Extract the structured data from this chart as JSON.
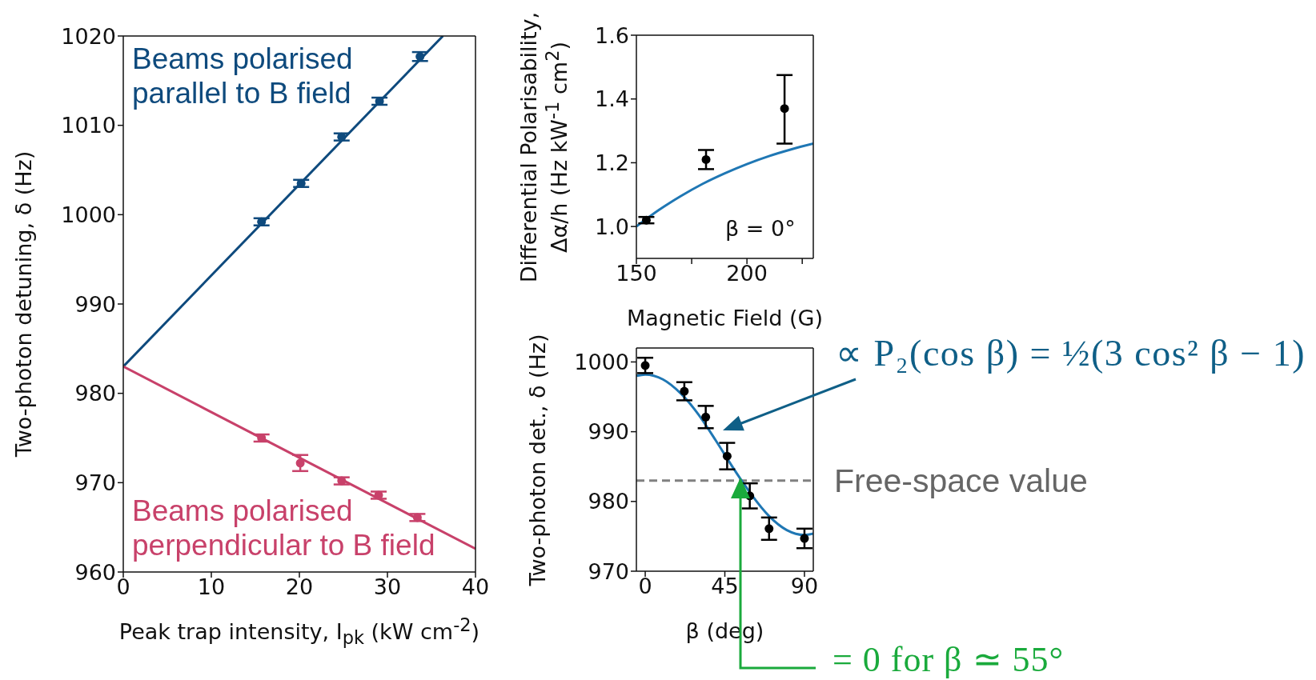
{
  "chart_data": [
    {
      "type": "scatter",
      "xlabel": "Peak trap intensity, I$_{pk}$ (kW cm$^{-2}$)",
      "ylabel": "Two-photon detuning, δ (Hz)",
      "xlim": [
        0,
        40
      ],
      "ylim": [
        960,
        1020
      ],
      "xticks": [
        0,
        10,
        20,
        30,
        40
      ],
      "yticks": [
        960,
        970,
        980,
        990,
        1000,
        1010,
        1020
      ],
      "series": [
        {
          "type": "line",
          "color": "#0e4a7d",
          "x": [
            0,
            36.3
          ],
          "values": [
            983,
            1020
          ]
        },
        {
          "type": "scatter",
          "name": "Beams polarised parallel to B field",
          "color": "#0e4a7d",
          "marker": "circle",
          "x": [
            15.7,
            20.2,
            24.8,
            29.1,
            33.7
          ],
          "values": [
            999.2,
            1003.5,
            1008.7,
            1012.7,
            1017.7
          ],
          "errors": [
            0.4,
            0.4,
            0.4,
            0.4,
            0.5
          ]
        },
        {
          "type": "line",
          "color": "#c8416a",
          "x": [
            0,
            40
          ],
          "values": [
            983,
            962.6
          ]
        },
        {
          "type": "scatter",
          "name": "Beams polarised perpendicular to B field",
          "color": "#c8416a",
          "marker": "circle",
          "x": [
            15.7,
            20.1,
            24.8,
            29.0,
            33.4
          ],
          "values": [
            975.0,
            972.2,
            970.2,
            968.6,
            966.1
          ],
          "errors": [
            0.4,
            0.9,
            0.4,
            0.4,
            0.4
          ]
        }
      ]
    },
    {
      "type": "scatter",
      "xlabel": "Magnetic Field (G)",
      "ylabel": "Differential Polarisability,\nΔα/h (Hz kW$^{-1}$ cm$^{2}$)",
      "xlim": [
        150,
        230
      ],
      "ylim": [
        0.9,
        1.6
      ],
      "xticks": [
        150,
        {
          "value": 175,
          "label": null
        },
        200,
        {
          "value": 225,
          "label": null
        }
      ],
      "yticks": [
        {
          "value": 1,
          "label": "1.0"
        },
        1.2,
        1.4,
        1.6
      ],
      "annotations": [
        "β = 0°"
      ],
      "series": [
        {
          "type": "line",
          "color": "#1f77b4",
          "x": [
            150,
            160,
            170,
            180,
            190,
            200,
            210,
            220,
            230
          ],
          "values": [
            1.0,
            1.051,
            1.095,
            1.134,
            1.167,
            1.196,
            1.221,
            1.242,
            1.26
          ]
        },
        {
          "type": "scatter",
          "color": "#000000",
          "marker": "circle",
          "x": [
            154.5,
            181.5,
            217
          ],
          "values": [
            1.02,
            1.21,
            1.37
          ],
          "errors": [
            0.01,
            0.03,
            [
              1.26,
              1.475
            ]
          ]
        }
      ]
    },
    {
      "type": "scatter",
      "xlabel": "β (deg)",
      "ylabel": "Two-photon det., δ (Hz)",
      "xlim": [
        -5,
        95
      ],
      "ylim": [
        970,
        1002
      ],
      "xticks": [
        0,
        45,
        90
      ],
      "yticks": [
        970,
        980,
        990,
        1000
      ],
      "annotations": [
        "∝ P₂(cos β) = ½(3 cos² β − 1)",
        "= 0 for β ≃ 55°"
      ],
      "ref_lines": [
        {
          "axis": "y",
          "value": 983,
          "label": "Free-space value",
          "color": "#808080",
          "line_style": "dashed"
        }
      ],
      "series": [
        {
          "type": "line",
          "color": "#1f77b4",
          "x": [
            -5,
            0,
            10,
            20,
            30,
            40,
            50,
            55,
            60,
            70,
            80,
            90,
            95
          ],
          "values": [
            998.0,
            998.2,
            997.5,
            995.5,
            992.5,
            988.7,
            984.7,
            982.8,
            981.0,
            977.9,
            975.9,
            975.2,
            975.4
          ]
        },
        {
          "type": "scatter",
          "color": "#000000",
          "marker": "circle",
          "x": [
            0,
            22.1,
            34.2,
            46.3,
            59.1,
            70,
            90
          ],
          "values": [
            999.5,
            995.8,
            992.1,
            986.5,
            980.8,
            976.1,
            974.7
          ],
          "errors": [
            1.1,
            1.3,
            1.6,
            1.9,
            1.8,
            1.6,
            1.4
          ]
        }
      ]
    }
  ]
}
